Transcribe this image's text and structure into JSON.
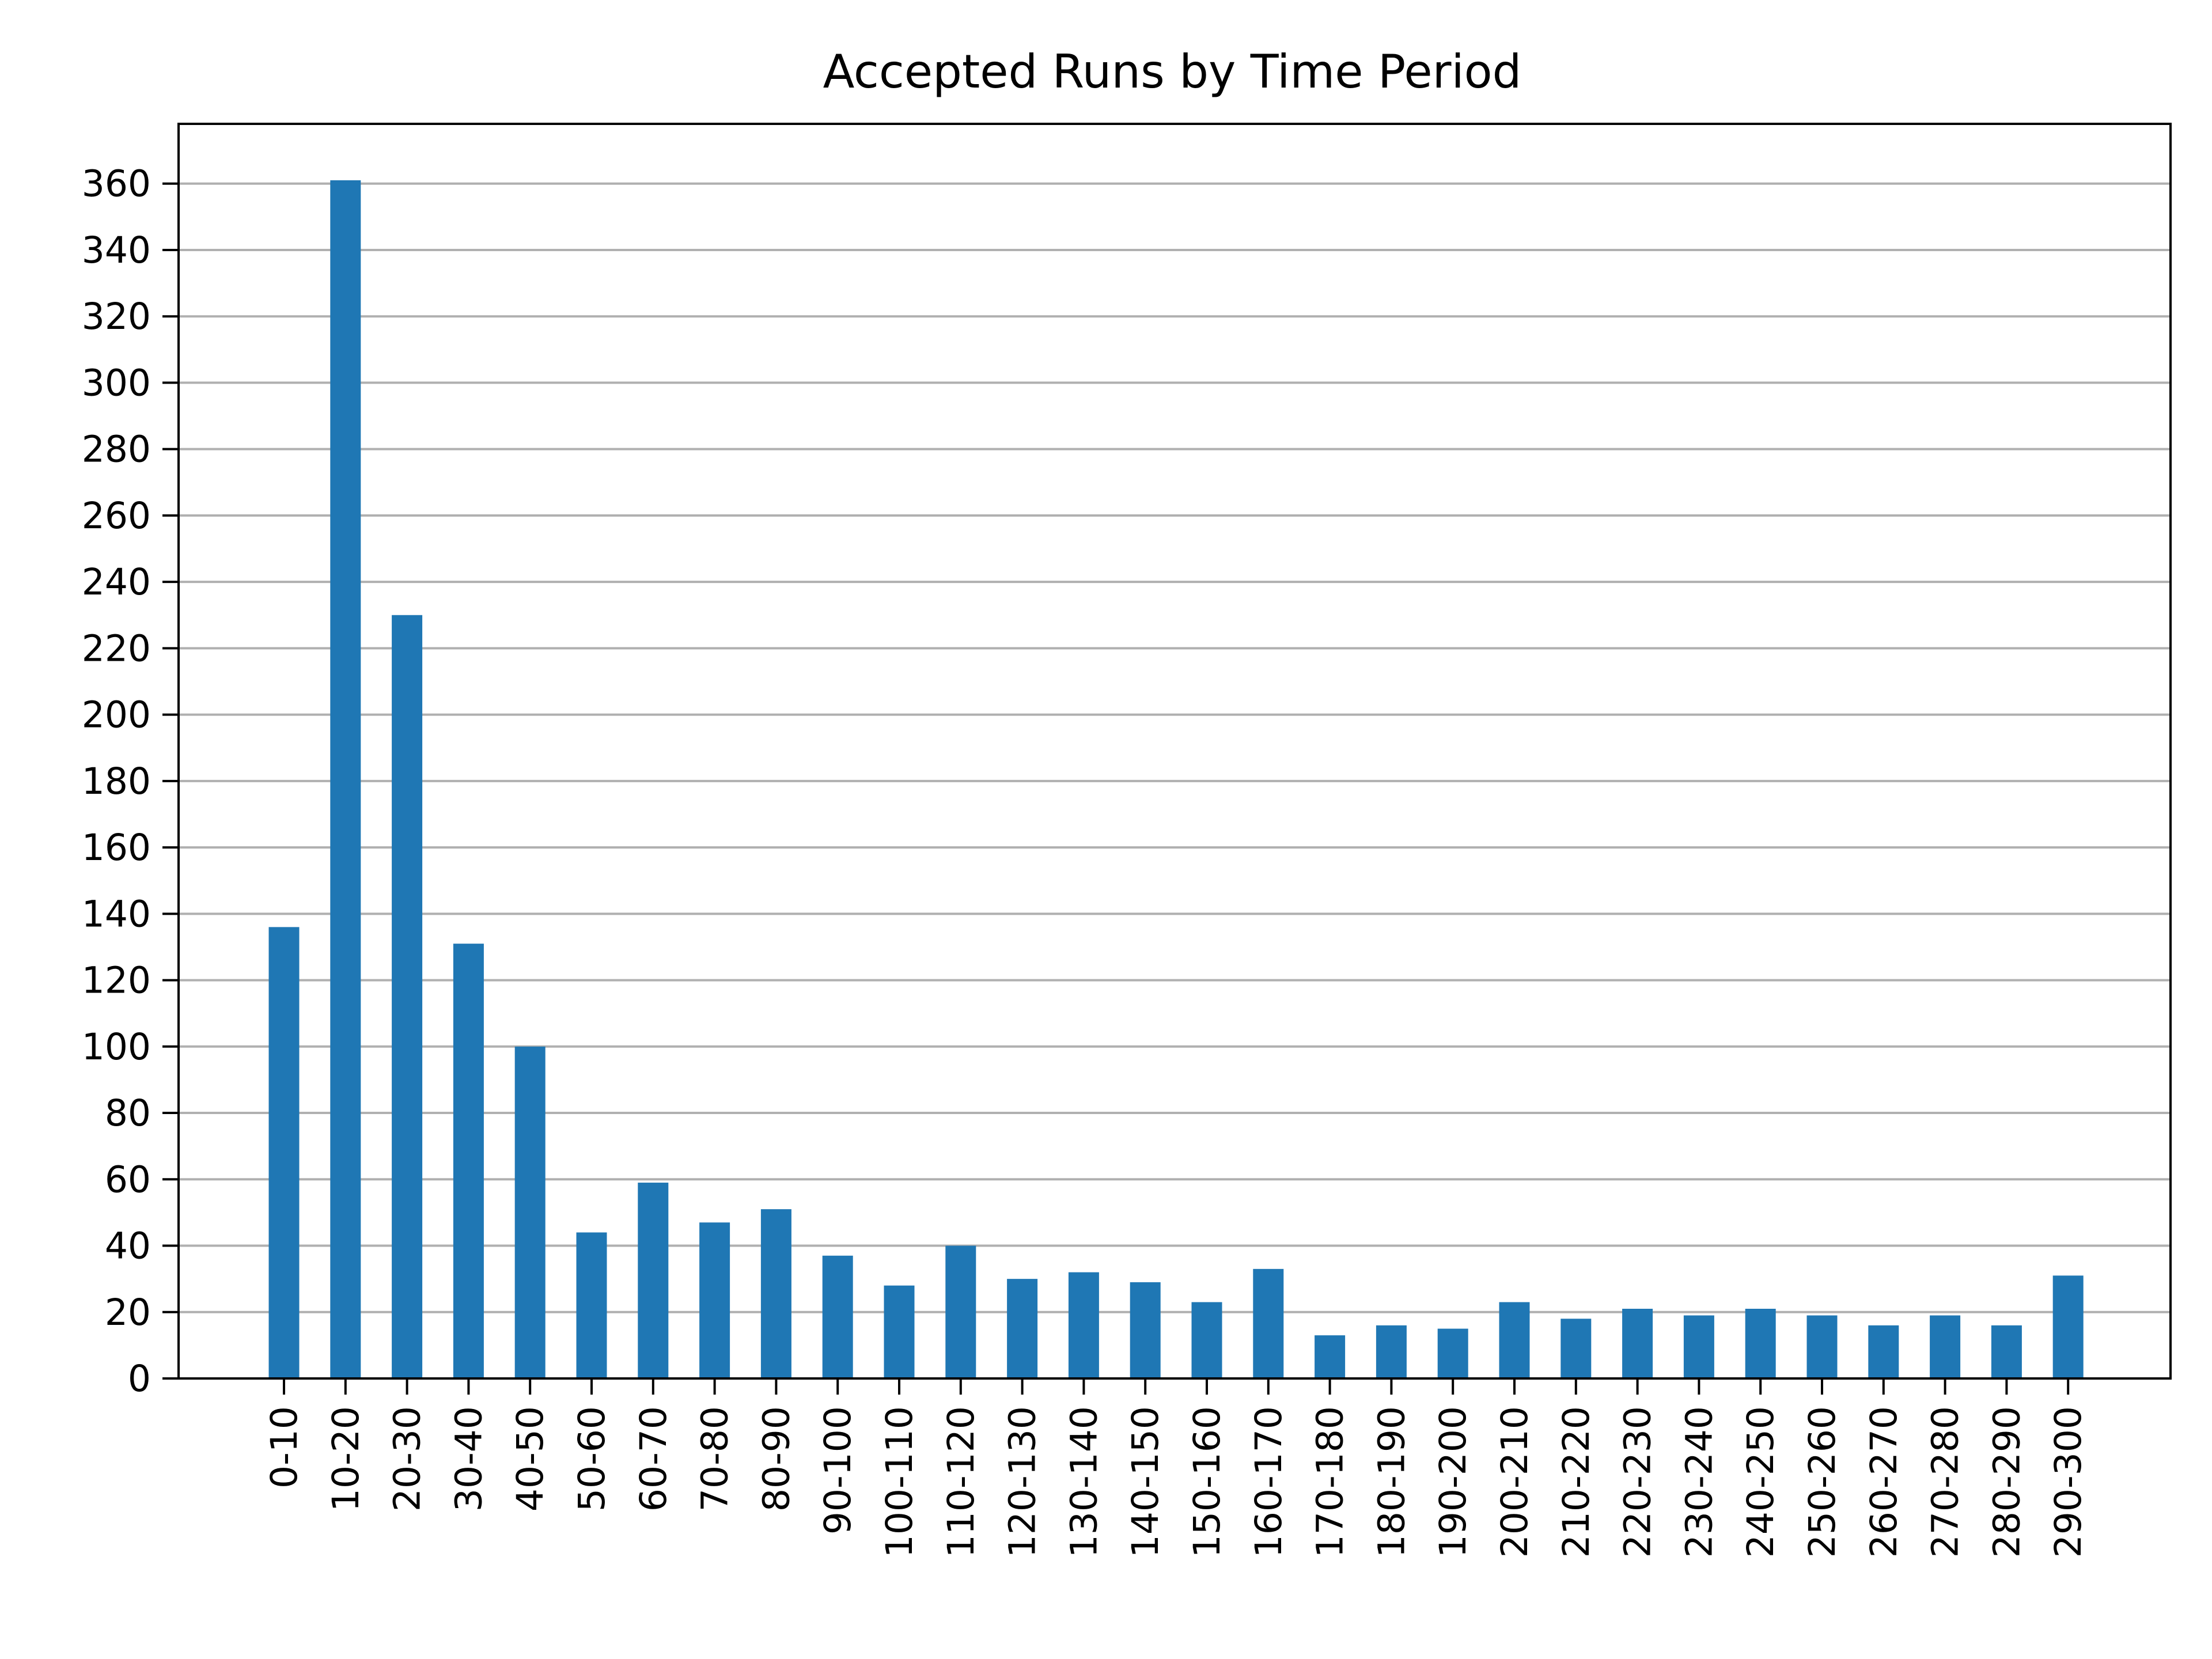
{
  "chart_data": {
    "type": "bar",
    "title": "Accepted Runs by Time Period",
    "xlabel": "",
    "ylabel": "",
    "categories": [
      "0-10",
      "10-20",
      "20-30",
      "30-40",
      "40-50",
      "50-60",
      "60-70",
      "70-80",
      "80-90",
      "90-100",
      "100-110",
      "110-120",
      "120-130",
      "130-140",
      "140-150",
      "150-160",
      "160-170",
      "170-180",
      "180-190",
      "190-200",
      "200-210",
      "210-220",
      "220-230",
      "230-240",
      "240-250",
      "250-260",
      "260-270",
      "270-280",
      "280-290",
      "290-300"
    ],
    "values": [
      136,
      361,
      230,
      131,
      100,
      44,
      59,
      47,
      51,
      37,
      28,
      40,
      30,
      32,
      29,
      23,
      33,
      13,
      16,
      15,
      23,
      18,
      21,
      19,
      21,
      19,
      16,
      19,
      16,
      31
    ],
    "ylim": [
      0,
      378
    ],
    "yticks": [
      0,
      20,
      40,
      60,
      80,
      100,
      120,
      140,
      160,
      180,
      200,
      220,
      240,
      260,
      280,
      300,
      320,
      340,
      360
    ],
    "grid": "y",
    "bar_color": "#1f77b4"
  }
}
